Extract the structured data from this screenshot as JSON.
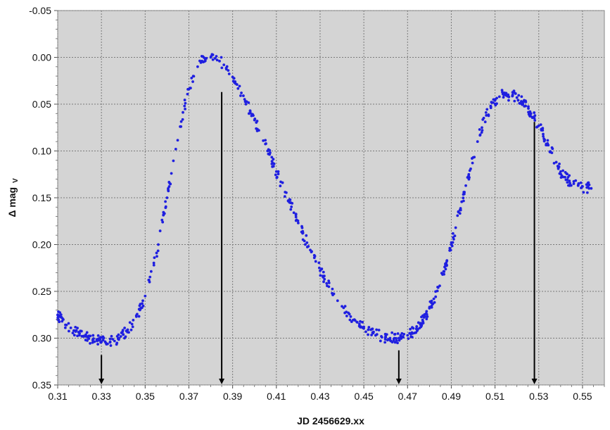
{
  "chart_data": {
    "type": "scatter",
    "title": "",
    "xlabel": "JD 2456629.xx",
    "ylabel": {
      "main": "Δ mag",
      "sub": "V"
    },
    "xlim": [
      0.31,
      0.56
    ],
    "ylim": [
      -0.05,
      0.35
    ],
    "y_inverted": true,
    "x_ticks": [
      "0.31",
      "0.33",
      "0.35",
      "0.37",
      "0.39",
      "0.41",
      "0.43",
      "0.45",
      "0.47",
      "0.49",
      "0.51",
      "0.53",
      "0.55"
    ],
    "x_tick_values": [
      0.31,
      0.33,
      0.35,
      0.37,
      0.39,
      0.41,
      0.43,
      0.45,
      0.47,
      0.49,
      0.51,
      0.53,
      0.55
    ],
    "y_ticks": [
      "-0.05",
      "0.00",
      "0.05",
      "0.10",
      "0.15",
      "0.20",
      "0.25",
      "0.30",
      "0.35"
    ],
    "y_tick_values": [
      -0.05,
      0.0,
      0.05,
      0.1,
      0.15,
      0.2,
      0.25,
      0.3,
      0.35
    ],
    "grid": true,
    "grid_style": "dotted",
    "plot_background": "#d4d4d4",
    "marker_color": "#1f1fe0",
    "series": [
      {
        "x": [
          0.31,
          0.312,
          0.314,
          0.316,
          0.318,
          0.32,
          0.322,
          0.324,
          0.326,
          0.328,
          0.33,
          0.332,
          0.334,
          0.336,
          0.338,
          0.34,
          0.342,
          0.344,
          0.346,
          0.348,
          0.35,
          0.352,
          0.354,
          0.356,
          0.358,
          0.36,
          0.362,
          0.364,
          0.366,
          0.368,
          0.37,
          0.372,
          0.374,
          0.376,
          0.378,
          0.38,
          0.382,
          0.384,
          0.386,
          0.388,
          0.39,
          0.392,
          0.394,
          0.396,
          0.398,
          0.4,
          0.402,
          0.404,
          0.406,
          0.408,
          0.41,
          0.412,
          0.414,
          0.416,
          0.418,
          0.42,
          0.422,
          0.424,
          0.426,
          0.428,
          0.43,
          0.432,
          0.434,
          0.436,
          0.438,
          0.44,
          0.442,
          0.444,
          0.446,
          0.448,
          0.45,
          0.452,
          0.454,
          0.456,
          0.458,
          0.46,
          0.462,
          0.464,
          0.466,
          0.468,
          0.47,
          0.472,
          0.474,
          0.476,
          0.478,
          0.48,
          0.482,
          0.484,
          0.486,
          0.488,
          0.49,
          0.492,
          0.494,
          0.496,
          0.498,
          0.5,
          0.502,
          0.504,
          0.506,
          0.508,
          0.51,
          0.512,
          0.514,
          0.516,
          0.518,
          0.52,
          0.522,
          0.524,
          0.526,
          0.528,
          0.53,
          0.532,
          0.534,
          0.536,
          0.538,
          0.54,
          0.542,
          0.544,
          0.546,
          0.548,
          0.55,
          0.552,
          0.554
        ],
        "y": [
          0.275,
          0.282,
          0.286,
          0.289,
          0.292,
          0.295,
          0.298,
          0.3,
          0.302,
          0.303,
          0.304,
          0.305,
          0.304,
          0.303,
          0.3,
          0.296,
          0.291,
          0.285,
          0.277,
          0.268,
          0.255,
          0.24,
          0.222,
          0.2,
          0.176,
          0.15,
          0.124,
          0.098,
          0.074,
          0.052,
          0.034,
          0.02,
          0.01,
          0.004,
          0.001,
          0.0,
          0.001,
          0.004,
          0.008,
          0.014,
          0.021,
          0.029,
          0.038,
          0.047,
          0.057,
          0.067,
          0.078,
          0.089,
          0.1,
          0.111,
          0.122,
          0.133,
          0.144,
          0.155,
          0.166,
          0.177,
          0.188,
          0.198,
          0.208,
          0.218,
          0.228,
          0.237,
          0.245,
          0.253,
          0.26,
          0.266,
          0.272,
          0.277,
          0.281,
          0.285,
          0.288,
          0.291,
          0.294,
          0.296,
          0.298,
          0.299,
          0.3,
          0.3,
          0.3,
          0.299,
          0.297,
          0.294,
          0.29,
          0.284,
          0.277,
          0.268,
          0.258,
          0.246,
          0.232,
          0.217,
          0.2,
          0.182,
          0.163,
          0.144,
          0.125,
          0.107,
          0.09,
          0.075,
          0.062,
          0.052,
          0.046,
          0.042,
          0.04,
          0.04,
          0.041,
          0.043,
          0.047,
          0.052,
          0.058,
          0.065,
          0.073,
          0.082,
          0.092,
          0.102,
          0.112,
          0.122,
          0.128,
          0.132,
          0.135,
          0.137,
          0.138,
          0.139,
          0.14
        ]
      }
    ],
    "annotations": {
      "type": "arrows",
      "arrows": [
        {
          "x": 0.33,
          "y_from": 0.318,
          "y_to": 0.35
        },
        {
          "x": 0.385,
          "y_from": 0.037,
          "y_to": 0.35
        },
        {
          "x": 0.466,
          "y_from": 0.313,
          "y_to": 0.35
        },
        {
          "x": 0.528,
          "y_from": 0.069,
          "y_to": 0.35
        }
      ]
    }
  }
}
